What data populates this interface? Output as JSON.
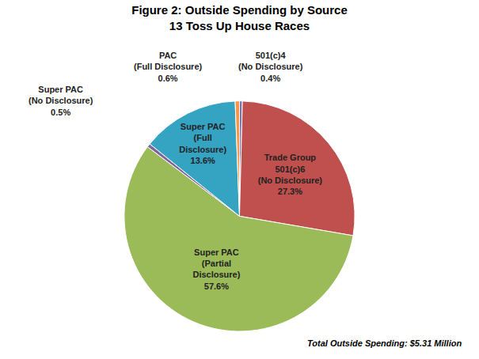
{
  "chart_data": {
    "type": "pie",
    "title": "Figure 2: Outside Spending by Source",
    "subtitle": "13 Toss Up House Races",
    "categories": [
      "501(c)4 (No Disclosure)",
      "Trade Group 501(c)6 (No Disclosure)",
      "Super PAC (Partial Disclosure)",
      "Super PAC (No Disclosure)",
      "Super PAC (Full Disclosure)",
      "PAC (Full Disclosure)"
    ],
    "values": [
      0.4,
      27.3,
      57.6,
      0.5,
      13.6,
      0.6
    ],
    "value_labels": [
      "0.4%",
      "27.3%",
      "57.6%",
      "0.5%",
      "13.6%",
      "0.6%"
    ],
    "colors": [
      "#7b6bb0",
      "#c0504d",
      "#9bbb59",
      "#8064a2",
      "#35a3c2",
      "#f79646"
    ],
    "data_labels": true,
    "note": "Total Outside Spending: $5.31 Million"
  }
}
